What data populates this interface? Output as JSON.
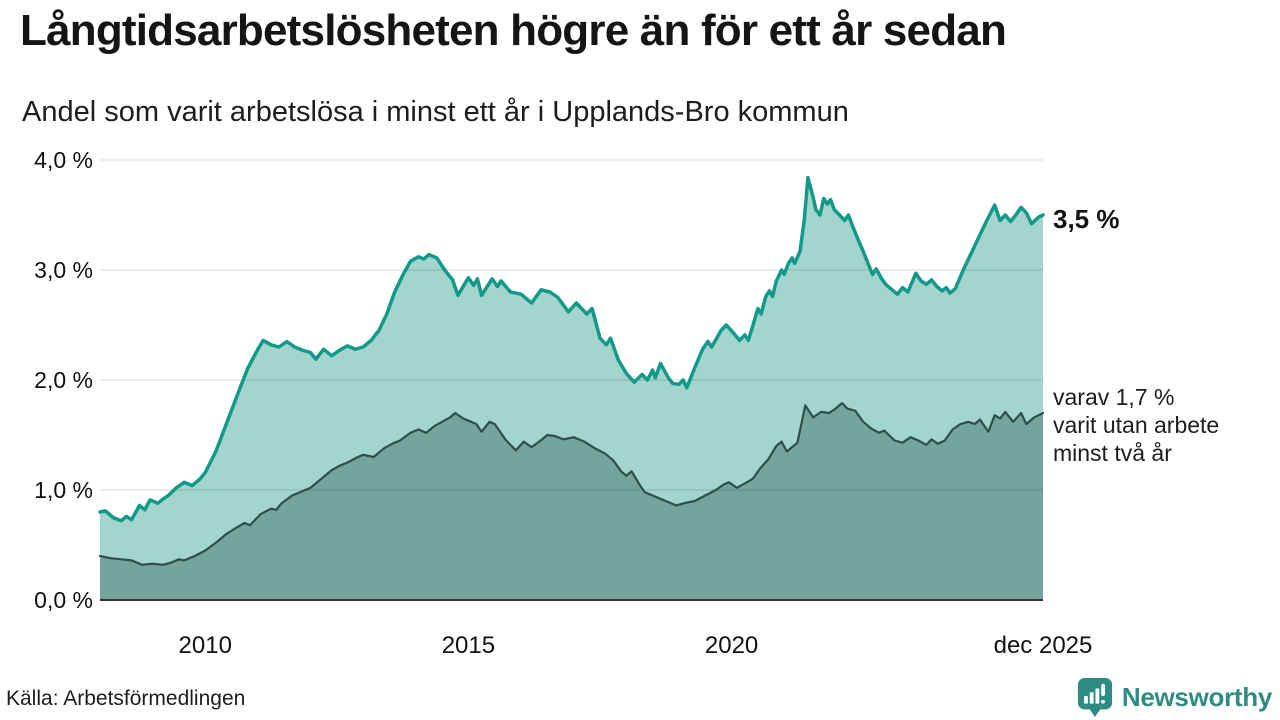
{
  "header": {
    "title": "Långtidsarbetslösheten högre än för ett år sedan",
    "subtitle": "Andel som varit arbetslösa i minst ett år i Upplands-Bro kommun"
  },
  "chart_data": {
    "type": "area",
    "title": "Långtidsarbetslösheten högre än för ett år sedan",
    "subtitle": "Andel som varit arbetslösa i minst ett år i Upplands-Bro kommun",
    "ylabel": "",
    "xlabel": "",
    "ylim": [
      0,
      4
    ],
    "x_range": [
      2008.0,
      2025.917
    ],
    "grid": true,
    "unit": "%",
    "yticks": [
      {
        "value": 4.0,
        "label": "4,0 %"
      },
      {
        "value": 3.0,
        "label": "3,0 %"
      },
      {
        "value": 2.0,
        "label": "2,0 %"
      },
      {
        "value": 1.0,
        "label": "1,0 %"
      },
      {
        "value": 0.0,
        "label": "0,0 %"
      }
    ],
    "xticks": [
      {
        "value": 2010,
        "label": "2010"
      },
      {
        "value": 2015,
        "label": "2015"
      },
      {
        "value": 2020,
        "label": "2020"
      },
      {
        "value": 2025.917,
        "label": "dec 2025"
      }
    ],
    "end_labels": {
      "primary": "3,5 %",
      "secondary_lines": [
        "varav 1,7 %",
        "varit utan arbete",
        "minst två år"
      ]
    },
    "series": [
      {
        "name": "Andel som varit arbetslösa i minst ett år",
        "line_color": "#13998a",
        "fill_color": "#a3d5ce",
        "line_width": 3.5,
        "last_value": 3.5,
        "points": [
          [
            2008.0,
            0.8
          ],
          [
            2008.1,
            0.81
          ],
          [
            2008.25,
            0.75
          ],
          [
            2008.4,
            0.72
          ],
          [
            2008.5,
            0.76
          ],
          [
            2008.6,
            0.73
          ],
          [
            2008.75,
            0.86
          ],
          [
            2008.85,
            0.82
          ],
          [
            2008.95,
            0.91
          ],
          [
            2009.1,
            0.88
          ],
          [
            2009.2,
            0.92
          ],
          [
            2009.3,
            0.95
          ],
          [
            2009.45,
            1.02
          ],
          [
            2009.6,
            1.07
          ],
          [
            2009.75,
            1.04
          ],
          [
            2009.9,
            1.1
          ],
          [
            2010.0,
            1.16
          ],
          [
            2010.2,
            1.35
          ],
          [
            2010.4,
            1.6
          ],
          [
            2010.6,
            1.85
          ],
          [
            2010.8,
            2.1
          ],
          [
            2011.0,
            2.28
          ],
          [
            2011.1,
            2.36
          ],
          [
            2011.25,
            2.32
          ],
          [
            2011.4,
            2.3
          ],
          [
            2011.55,
            2.35
          ],
          [
            2011.7,
            2.3
          ],
          [
            2011.85,
            2.27
          ],
          [
            2012.0,
            2.25
          ],
          [
            2012.1,
            2.19
          ],
          [
            2012.25,
            2.28
          ],
          [
            2012.4,
            2.22
          ],
          [
            2012.55,
            2.27
          ],
          [
            2012.7,
            2.31
          ],
          [
            2012.85,
            2.28
          ],
          [
            2013.0,
            2.3
          ],
          [
            2013.15,
            2.36
          ],
          [
            2013.3,
            2.45
          ],
          [
            2013.45,
            2.6
          ],
          [
            2013.6,
            2.8
          ],
          [
            2013.75,
            2.95
          ],
          [
            2013.9,
            3.08
          ],
          [
            2014.05,
            3.12
          ],
          [
            2014.15,
            3.1
          ],
          [
            2014.25,
            3.14
          ],
          [
            2014.4,
            3.11
          ],
          [
            2014.55,
            3.0
          ],
          [
            2014.7,
            2.91
          ],
          [
            2014.8,
            2.77
          ],
          [
            2015.0,
            2.93
          ],
          [
            2015.1,
            2.86
          ],
          [
            2015.17,
            2.92
          ],
          [
            2015.25,
            2.77
          ],
          [
            2015.45,
            2.92
          ],
          [
            2015.55,
            2.85
          ],
          [
            2015.62,
            2.9
          ],
          [
            2015.8,
            2.8
          ],
          [
            2016.0,
            2.78
          ],
          [
            2016.2,
            2.7
          ],
          [
            2016.38,
            2.82
          ],
          [
            2016.55,
            2.8
          ],
          [
            2016.7,
            2.75
          ],
          [
            2016.9,
            2.62
          ],
          [
            2017.05,
            2.7
          ],
          [
            2017.25,
            2.6
          ],
          [
            2017.35,
            2.65
          ],
          [
            2017.5,
            2.38
          ],
          [
            2017.62,
            2.32
          ],
          [
            2017.7,
            2.38
          ],
          [
            2017.85,
            2.18
          ],
          [
            2018.0,
            2.06
          ],
          [
            2018.15,
            1.98
          ],
          [
            2018.3,
            2.05
          ],
          [
            2018.4,
            2.0
          ],
          [
            2018.5,
            2.09
          ],
          [
            2018.55,
            2.02
          ],
          [
            2018.65,
            2.15
          ],
          [
            2018.8,
            2.02
          ],
          [
            2018.88,
            1.97
          ],
          [
            2019.0,
            1.96
          ],
          [
            2019.08,
            2.0
          ],
          [
            2019.15,
            1.93
          ],
          [
            2019.3,
            2.11
          ],
          [
            2019.45,
            2.28
          ],
          [
            2019.55,
            2.35
          ],
          [
            2019.62,
            2.3
          ],
          [
            2019.8,
            2.45
          ],
          [
            2019.9,
            2.5
          ],
          [
            2020.05,
            2.42
          ],
          [
            2020.15,
            2.36
          ],
          [
            2020.25,
            2.41
          ],
          [
            2020.32,
            2.36
          ],
          [
            2020.42,
            2.52
          ],
          [
            2020.5,
            2.65
          ],
          [
            2020.56,
            2.6
          ],
          [
            2020.65,
            2.76
          ],
          [
            2020.72,
            2.81
          ],
          [
            2020.78,
            2.76
          ],
          [
            2020.85,
            2.9
          ],
          [
            2020.95,
            3.0
          ],
          [
            2021.0,
            2.96
          ],
          [
            2021.08,
            3.06
          ],
          [
            2021.15,
            3.11
          ],
          [
            2021.2,
            3.06
          ],
          [
            2021.3,
            3.17
          ],
          [
            2021.38,
            3.45
          ],
          [
            2021.45,
            3.84
          ],
          [
            2021.55,
            3.66
          ],
          [
            2021.6,
            3.55
          ],
          [
            2021.68,
            3.5
          ],
          [
            2021.75,
            3.65
          ],
          [
            2021.82,
            3.6
          ],
          [
            2021.88,
            3.64
          ],
          [
            2021.95,
            3.55
          ],
          [
            2022.05,
            3.5
          ],
          [
            2022.15,
            3.45
          ],
          [
            2022.22,
            3.5
          ],
          [
            2022.3,
            3.4
          ],
          [
            2022.4,
            3.28
          ],
          [
            2022.5,
            3.17
          ],
          [
            2022.6,
            3.05
          ],
          [
            2022.68,
            2.96
          ],
          [
            2022.75,
            3.01
          ],
          [
            2022.85,
            2.92
          ],
          [
            2022.95,
            2.86
          ],
          [
            2023.05,
            2.82
          ],
          [
            2023.15,
            2.78
          ],
          [
            2023.25,
            2.84
          ],
          [
            2023.35,
            2.8
          ],
          [
            2023.5,
            2.97
          ],
          [
            2023.6,
            2.9
          ],
          [
            2023.7,
            2.87
          ],
          [
            2023.8,
            2.91
          ],
          [
            2023.9,
            2.85
          ],
          [
            2024.0,
            2.81
          ],
          [
            2024.08,
            2.84
          ],
          [
            2024.15,
            2.79
          ],
          [
            2024.25,
            2.83
          ],
          [
            2024.4,
            3.0
          ],
          [
            2024.55,
            3.15
          ],
          [
            2024.7,
            3.3
          ],
          [
            2024.85,
            3.45
          ],
          [
            2025.0,
            3.59
          ],
          [
            2025.1,
            3.45
          ],
          [
            2025.2,
            3.5
          ],
          [
            2025.3,
            3.44
          ],
          [
            2025.4,
            3.5
          ],
          [
            2025.5,
            3.57
          ],
          [
            2025.6,
            3.52
          ],
          [
            2025.7,
            3.42
          ],
          [
            2025.83,
            3.48
          ],
          [
            2025.917,
            3.5
          ]
        ]
      },
      {
        "name": "varav utan arbete minst två år",
        "line_color": "#2d4f4a",
        "fill_color": "#75a49d",
        "line_width": 2.2,
        "last_value": 1.7,
        "points": [
          [
            2008.0,
            0.4
          ],
          [
            2008.2,
            0.38
          ],
          [
            2008.4,
            0.37
          ],
          [
            2008.6,
            0.36
          ],
          [
            2008.8,
            0.32
          ],
          [
            2009.0,
            0.33
          ],
          [
            2009.2,
            0.32
          ],
          [
            2009.35,
            0.34
          ],
          [
            2009.5,
            0.37
          ],
          [
            2009.6,
            0.36
          ],
          [
            2009.8,
            0.4
          ],
          [
            2010.0,
            0.45
          ],
          [
            2010.2,
            0.52
          ],
          [
            2010.4,
            0.6
          ],
          [
            2010.6,
            0.66
          ],
          [
            2010.75,
            0.7
          ],
          [
            2010.85,
            0.68
          ],
          [
            2011.05,
            0.78
          ],
          [
            2011.25,
            0.83
          ],
          [
            2011.35,
            0.82
          ],
          [
            2011.45,
            0.88
          ],
          [
            2011.65,
            0.95
          ],
          [
            2011.85,
            0.99
          ],
          [
            2012.0,
            1.02
          ],
          [
            2012.2,
            1.1
          ],
          [
            2012.4,
            1.18
          ],
          [
            2012.55,
            1.22
          ],
          [
            2012.7,
            1.25
          ],
          [
            2012.9,
            1.3
          ],
          [
            2013.0,
            1.32
          ],
          [
            2013.2,
            1.3
          ],
          [
            2013.4,
            1.38
          ],
          [
            2013.55,
            1.42
          ],
          [
            2013.7,
            1.45
          ],
          [
            2013.9,
            1.52
          ],
          [
            2014.05,
            1.55
          ],
          [
            2014.2,
            1.52
          ],
          [
            2014.35,
            1.58
          ],
          [
            2014.5,
            1.62
          ],
          [
            2014.65,
            1.66
          ],
          [
            2014.75,
            1.7
          ],
          [
            2014.9,
            1.65
          ],
          [
            2015.0,
            1.63
          ],
          [
            2015.15,
            1.6
          ],
          [
            2015.25,
            1.53
          ],
          [
            2015.4,
            1.62
          ],
          [
            2015.5,
            1.6
          ],
          [
            2015.7,
            1.46
          ],
          [
            2015.9,
            1.36
          ],
          [
            2016.05,
            1.44
          ],
          [
            2016.2,
            1.39
          ],
          [
            2016.4,
            1.46
          ],
          [
            2016.5,
            1.5
          ],
          [
            2016.65,
            1.49
          ],
          [
            2016.8,
            1.46
          ],
          [
            2017.0,
            1.48
          ],
          [
            2017.2,
            1.44
          ],
          [
            2017.4,
            1.38
          ],
          [
            2017.6,
            1.33
          ],
          [
            2017.75,
            1.27
          ],
          [
            2017.9,
            1.17
          ],
          [
            2018.0,
            1.13
          ],
          [
            2018.1,
            1.17
          ],
          [
            2018.25,
            1.05
          ],
          [
            2018.35,
            0.98
          ],
          [
            2018.5,
            0.95
          ],
          [
            2018.65,
            0.92
          ],
          [
            2018.8,
            0.89
          ],
          [
            2018.95,
            0.86
          ],
          [
            2019.1,
            0.88
          ],
          [
            2019.3,
            0.9
          ],
          [
            2019.5,
            0.95
          ],
          [
            2019.7,
            1.0
          ],
          [
            2019.85,
            1.05
          ],
          [
            2019.95,
            1.07
          ],
          [
            2020.1,
            1.02
          ],
          [
            2020.25,
            1.06
          ],
          [
            2020.4,
            1.1
          ],
          [
            2020.55,
            1.2
          ],
          [
            2020.7,
            1.28
          ],
          [
            2020.85,
            1.4
          ],
          [
            2020.95,
            1.44
          ],
          [
            2021.05,
            1.35
          ],
          [
            2021.15,
            1.39
          ],
          [
            2021.25,
            1.43
          ],
          [
            2021.4,
            1.77
          ],
          [
            2021.55,
            1.66
          ],
          [
            2021.7,
            1.71
          ],
          [
            2021.85,
            1.7
          ],
          [
            2021.95,
            1.73
          ],
          [
            2022.1,
            1.79
          ],
          [
            2022.2,
            1.74
          ],
          [
            2022.35,
            1.72
          ],
          [
            2022.5,
            1.62
          ],
          [
            2022.65,
            1.56
          ],
          [
            2022.8,
            1.52
          ],
          [
            2022.9,
            1.54
          ],
          [
            2023.1,
            1.45
          ],
          [
            2023.25,
            1.43
          ],
          [
            2023.4,
            1.48
          ],
          [
            2023.55,
            1.45
          ],
          [
            2023.7,
            1.41
          ],
          [
            2023.8,
            1.46
          ],
          [
            2023.92,
            1.42
          ],
          [
            2024.05,
            1.45
          ],
          [
            2024.2,
            1.55
          ],
          [
            2024.35,
            1.6
          ],
          [
            2024.5,
            1.62
          ],
          [
            2024.62,
            1.6
          ],
          [
            2024.72,
            1.64
          ],
          [
            2024.88,
            1.53
          ],
          [
            2025.0,
            1.68
          ],
          [
            2025.1,
            1.65
          ],
          [
            2025.2,
            1.71
          ],
          [
            2025.35,
            1.62
          ],
          [
            2025.5,
            1.7
          ],
          [
            2025.6,
            1.6
          ],
          [
            2025.75,
            1.66
          ],
          [
            2025.917,
            1.7
          ]
        ]
      }
    ],
    "legend_position": "right-annotations",
    "grid_color": "#dddddd",
    "baseline_color": "#333333"
  },
  "footer": {
    "source": "Källa: Arbetsförmedlingen",
    "brand": "Newsworthy",
    "brand_color": "#2e8c82"
  }
}
